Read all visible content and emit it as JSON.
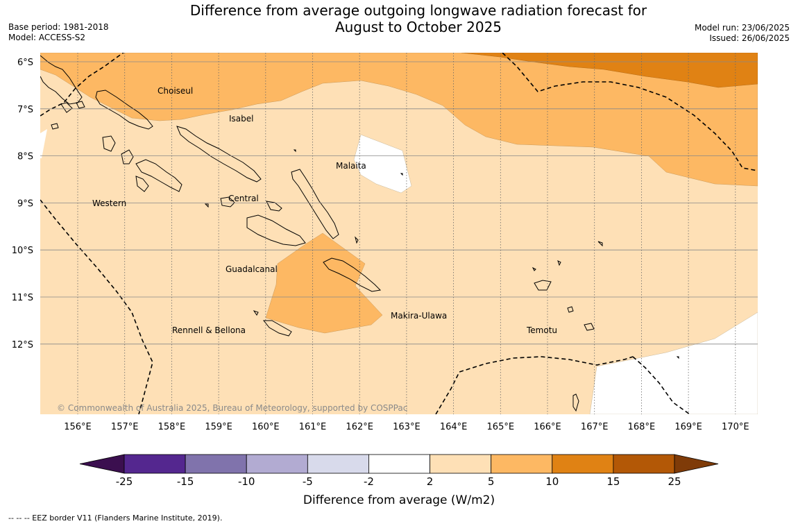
{
  "header": {
    "title_line1": "Difference from average outgoing longwave radiation forecast for",
    "title_line2": "August to October 2025",
    "base_period": "Base period: 1981-2018",
    "model": "Model: ACCESS-S2",
    "model_run": "Model run: 23/06/2025",
    "issued": "Issued: 26/06/2025"
  },
  "map": {
    "lat_labels": [
      "6°S",
      "7°S",
      "8°S",
      "9°S",
      "10°S",
      "11°S",
      "12°S"
    ],
    "lon_labels": [
      "156°E",
      "157°E",
      "158°E",
      "159°E",
      "160°E",
      "161°E",
      "162°E",
      "163°E",
      "164°E",
      "165°E",
      "166°E",
      "167°E",
      "168°E",
      "169°E",
      "170°E"
    ],
    "regions": [
      "Choiseul",
      "Isabel",
      "Malaita",
      "Western",
      "Central",
      "Guadalcanal",
      "Makira-Ulawa",
      "Rennell & Bellona",
      "Temotu"
    ],
    "copyright": "© Commonwealth of Australia 2025, Bureau of Meteorology, supported by COSPPac"
  },
  "colorbar": {
    "title": "Difference from average (W/m2)",
    "ticks": [
      "-25",
      "-15",
      "-10",
      "-5",
      "-2",
      "2",
      "5",
      "10",
      "15",
      "25"
    ],
    "colors": [
      "#3b0f4f",
      "#54278f",
      "#8073ac",
      "#b2abd2",
      "#d8daeb",
      "#ffffff",
      "#fee0b6",
      "#fdb863",
      "#e08214",
      "#b35806",
      "#7f3b08"
    ]
  },
  "footnote": "--  --  -- EEZ border V11 (Flanders Marine Institute, 2019)."
}
